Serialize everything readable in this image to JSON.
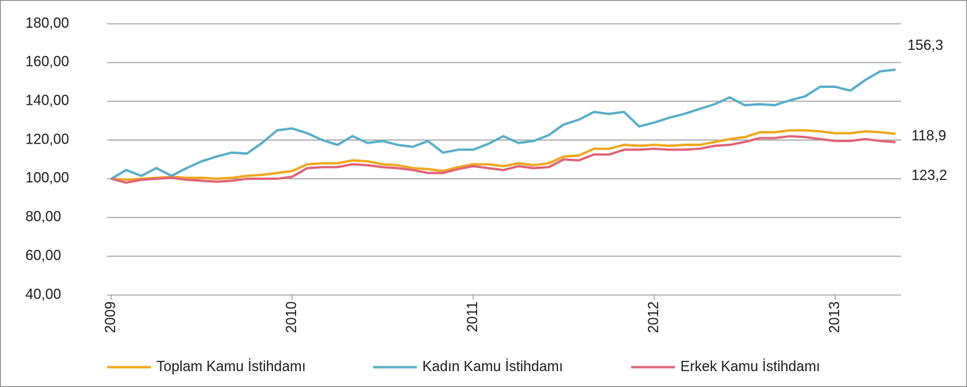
{
  "chart_data": {
    "type": "line",
    "categories": [
      "2009",
      null,
      null,
      null,
      null,
      null,
      null,
      null,
      null,
      null,
      null,
      null,
      "2010",
      null,
      null,
      null,
      null,
      null,
      null,
      null,
      null,
      null,
      null,
      null,
      "2011",
      null,
      null,
      null,
      null,
      null,
      null,
      null,
      null,
      null,
      null,
      null,
      "2012",
      null,
      null,
      null,
      null,
      null,
      null,
      null,
      null,
      null,
      null,
      null,
      "2013",
      null,
      null,
      null,
      null
    ],
    "series": [
      {
        "name": "Toplam Kamu İstihdamı",
        "color": "#f0a81c",
        "values": [
          100,
          99.5,
          100,
          100.5,
          101,
          100.5,
          100.5,
          100,
          100.5,
          101.5,
          102,
          103,
          104,
          107.5,
          108,
          108,
          109.5,
          109,
          107.5,
          107,
          105.5,
          105,
          104,
          106,
          107.5,
          107.5,
          106.5,
          108,
          107,
          108,
          111.5,
          112,
          115.5,
          115.5,
          117.5,
          117,
          117.5,
          117,
          117.5,
          117.5,
          119,
          120.5,
          121.5,
          124,
          124,
          125,
          125,
          124.5,
          123.5,
          123.5,
          124.5,
          124,
          123.2
        ]
      },
      {
        "name": "Kadın Kamu İstihdamı",
        "color": "#5aafc8",
        "values": [
          100,
          104.5,
          101.5,
          105.5,
          101.5,
          105.5,
          109,
          111.5,
          113.5,
          113,
          118.5,
          125,
          126,
          123.5,
          120,
          117.5,
          122,
          118.5,
          119.5,
          117.5,
          116.5,
          119.5,
          113.5,
          115,
          115,
          118,
          122,
          118.5,
          119.5,
          122.5,
          128,
          130.5,
          134.5,
          133.5,
          134.5,
          127,
          129,
          131.5,
          133.5,
          136,
          138.5,
          142,
          138,
          138.5,
          138,
          140.5,
          142.5,
          147.5,
          147.5,
          145.5,
          151,
          155.5,
          156.3
        ]
      },
      {
        "name": "Erkek Kamu İstihdamı",
        "color": "#e0667a",
        "values": [
          100,
          98,
          99.5,
          100,
          100.5,
          99.5,
          99,
          98.5,
          99,
          100,
          100,
          100,
          101,
          105.5,
          106,
          106,
          107.5,
          107,
          106,
          105.5,
          104.5,
          103,
          103,
          105,
          106.5,
          105.5,
          104.5,
          106.5,
          105.5,
          106,
          110,
          109.5,
          112.5,
          112.5,
          115,
          115,
          115.5,
          115,
          115,
          115.5,
          117,
          117.5,
          119,
          121,
          121,
          122,
          121.5,
          120.5,
          119.5,
          119.5,
          120.5,
          119.5,
          118.9
        ]
      }
    ],
    "annotations": [
      "156,3",
      "118,9",
      "123,2"
    ],
    "ylim": [
      40,
      180
    ],
    "yticks": [
      {
        "value": 40,
        "label": "40,00"
      },
      {
        "value": 60,
        "label": "60,00"
      },
      {
        "value": 80,
        "label": "80,00"
      },
      {
        "value": 100,
        "label": "100,00"
      },
      {
        "value": 120,
        "label": "120,00"
      },
      {
        "value": 140,
        "label": "140,00"
      },
      {
        "value": 160,
        "label": "160,00"
      },
      {
        "value": 180,
        "label": "180,00"
      }
    ],
    "grid": true,
    "legend": "bottom"
  }
}
